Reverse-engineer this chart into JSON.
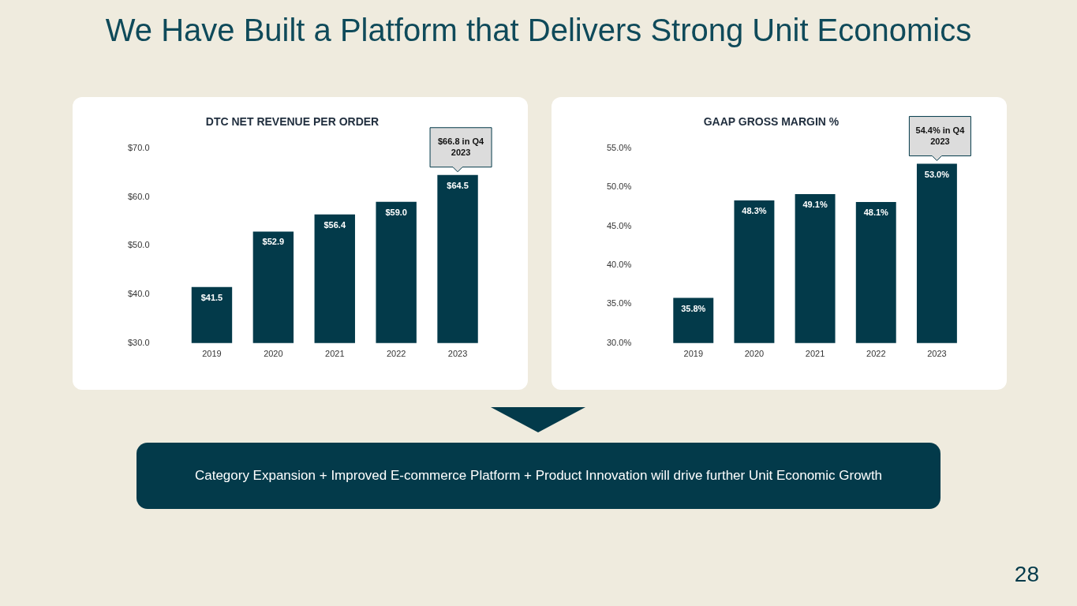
{
  "chart_data": [
    {
      "type": "other",
      "title": "We Have Built a Platform that Delivers Strong Unit Economics"
    },
    {
      "type": "bar",
      "title": "DTC NET REVENUE PER ORDER",
      "categories": [
        "2019",
        "2020",
        "2021",
        "2022",
        "2023"
      ],
      "values": [
        41.5,
        52.9,
        56.4,
        59.0,
        64.5
      ],
      "value_labels": [
        "$41.5",
        "$52.9",
        "$56.4",
        "$59.0",
        "$64.5"
      ],
      "color": "#033a4a",
      "ylim": [
        30,
        70
      ],
      "yticks": [
        {
          "value": 30,
          "label": "$30.0"
        },
        {
          "value": 40,
          "label": "$40.0"
        },
        {
          "value": 50,
          "label": "$50.0"
        },
        {
          "value": 60,
          "label": "$60.0"
        },
        {
          "value": 70,
          "label": "$70.0"
        }
      ],
      "grid": false,
      "legend": false,
      "annotations": [
        {
          "text": "$66.8 in Q4 2023",
          "x": "2023",
          "y": 64.5
        }
      ]
    },
    {
      "type": "bar",
      "title": "GAAP GROSS MARGIN %",
      "categories": [
        "2019",
        "2020",
        "2021",
        "2022",
        "2023"
      ],
      "values": [
        35.8,
        48.3,
        49.1,
        48.1,
        53.0
      ],
      "value_labels": [
        "35.8%",
        "48.3%",
        "49.1%",
        "48.1%",
        "53.0%"
      ],
      "color": "#033a4a",
      "ylim": [
        30,
        55
      ],
      "yticks": [
        {
          "value": 30,
          "label": "30.0%"
        },
        {
          "value": 35,
          "label": "35.0%"
        },
        {
          "value": 40,
          "label": "40.0%"
        },
        {
          "value": 45,
          "label": "45.0%"
        },
        {
          "value": 50,
          "label": "50.0%"
        },
        {
          "value": 55,
          "label": "55.0%"
        }
      ],
      "grid": false,
      "legend": false,
      "annotations": [
        {
          "text": "54.4% in Q4 2023",
          "x": "2023",
          "y": 53.0
        }
      ]
    },
    {
      "type": "other",
      "annotations": [
        "Category Expansion + Improved E-commerce Platform + Product Innovation will drive further Unit Economic Growth",
        "28"
      ]
    }
  ]
}
